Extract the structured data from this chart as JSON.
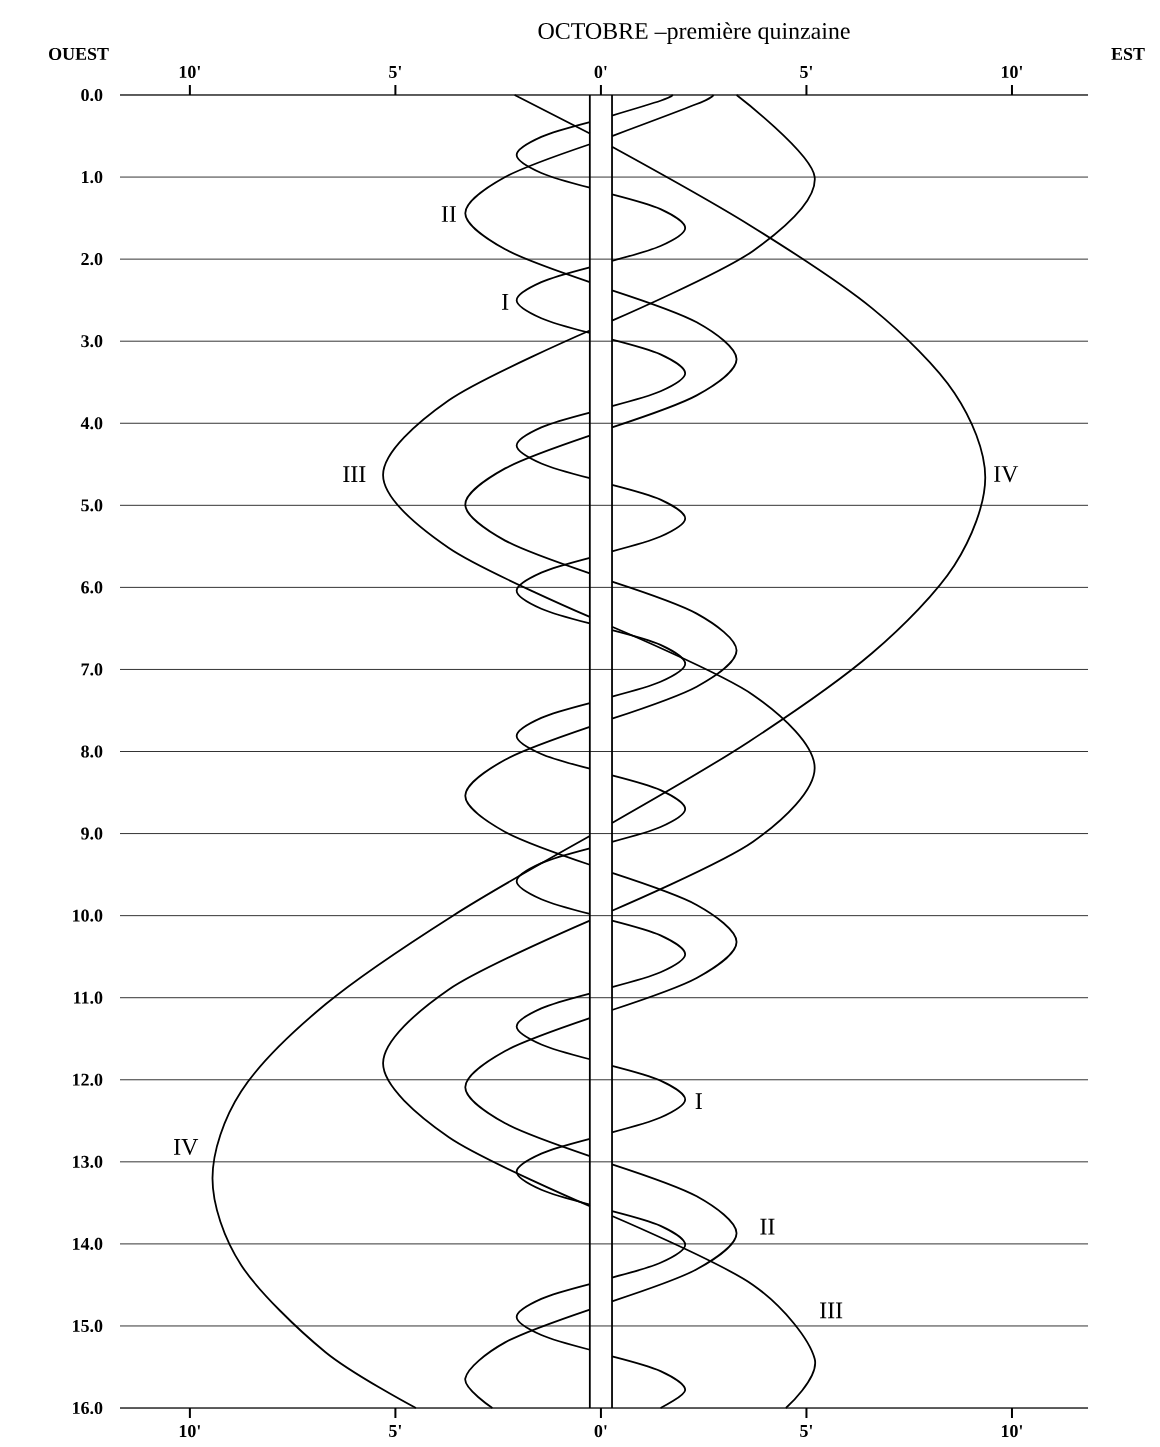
{
  "chart_data": {
    "type": "line",
    "title": "OCTOBRE –première quinzaine",
    "xlim": [
      -11.7,
      11.85
    ],
    "ylim": [
      16,
      0
    ],
    "xticks": [
      {
        "value": -10,
        "label": "10'"
      },
      {
        "value": -5,
        "label": "5'"
      },
      {
        "value": 0,
        "label": "0'"
      },
      {
        "value": 5,
        "label": "5'"
      },
      {
        "value": 10,
        "label": "10'"
      }
    ],
    "x2lim": [
      -11.7,
      11.85
    ],
    "x2ticks": [
      {
        "value": -10,
        "label": "10'"
      },
      {
        "value": -5,
        "label": "5'"
      },
      {
        "value": 0,
        "label": "0'"
      },
      {
        "value": 5,
        "label": "5'"
      },
      {
        "value": 10,
        "label": "10'"
      }
    ],
    "yticks": [
      {
        "value": 0,
        "label": "0.0"
      },
      {
        "value": 1,
        "label": "1.0"
      },
      {
        "value": 2,
        "label": "2.0"
      },
      {
        "value": 3,
        "label": "3.0"
      },
      {
        "value": 4,
        "label": "4.0"
      },
      {
        "value": 5,
        "label": "5.0"
      },
      {
        "value": 6,
        "label": "6.0"
      },
      {
        "value": 7,
        "label": "7.0"
      },
      {
        "value": 8,
        "label": "8.0"
      },
      {
        "value": 9,
        "label": "9.0"
      },
      {
        "value": 10,
        "label": "10.0"
      },
      {
        "value": 11,
        "label": "11.0"
      },
      {
        "value": 12,
        "label": "12.0"
      },
      {
        "value": 13,
        "label": "13.0"
      },
      {
        "value": 14,
        "label": "14.0"
      },
      {
        "value": 15,
        "label": "15.0"
      },
      {
        "value": 16,
        "label": "16.0"
      }
    ],
    "grid": "y",
    "marker": "none",
    "ref_lines": [
      {
        "axis": "x",
        "value": -0.27,
        "color": "#000000"
      },
      {
        "axis": "x",
        "value": 0.27,
        "color": "#000000"
      }
    ],
    "series": [
      {
        "color": "#000000",
        "x": [
          1.75,
          1.45,
          0.27,
          null,
          -0.27,
          -1.45,
          -2.05,
          -1.45,
          -0.27,
          null,
          0.27,
          1.45,
          2.05,
          1.45,
          0.27,
          null,
          -0.27,
          -1.45,
          -2.05,
          -1.45,
          -0.27,
          null,
          0.27,
          1.45,
          2.05,
          1.45,
          0.27,
          null,
          -0.27,
          -1.45,
          -2.05,
          -1.45,
          -0.27,
          null,
          0.27,
          1.45,
          2.05,
          1.45,
          0.27,
          null,
          -0.27,
          -1.45,
          -2.05,
          -1.45,
          -0.27,
          null,
          0.27,
          1.45,
          2.05,
          1.45,
          0.27,
          null,
          -0.27,
          -1.45,
          -2.05,
          -1.45,
          -0.27,
          null,
          0.27,
          1.45,
          2.05,
          1.45,
          0.27,
          null,
          -0.27,
          -1.45,
          -2.05,
          -1.45,
          -0.27,
          null,
          0.27,
          1.45,
          2.05,
          1.45,
          0.27,
          null,
          -0.27,
          -1.45,
          -2.05,
          -1.45,
          -0.27,
          null,
          0.27,
          1.45,
          2.05,
          1.45,
          0.27,
          null,
          -0.27,
          -1.45,
          -2.05,
          -1.45,
          -0.27,
          null,
          0.27,
          1.45,
          2.05,
          1.45,
          0.27,
          null,
          -0.27,
          -1.45,
          -2.05,
          -1.45,
          -0.27,
          null,
          0.27,
          1.45,
          2.05,
          1.45
        ],
        "values": [
          0,
          0.07,
          0.25,
          null,
          0.33,
          0.51,
          0.73,
          0.95,
          1.13,
          null,
          1.21,
          1.39,
          1.62,
          1.84,
          2.02,
          null,
          2.1,
          2.28,
          2.5,
          2.72,
          2.9,
          null,
          2.98,
          3.16,
          3.39,
          3.61,
          3.79,
          null,
          3.87,
          4.05,
          4.27,
          4.49,
          4.67,
          null,
          4.75,
          4.93,
          5.16,
          5.38,
          5.56,
          null,
          5.64,
          5.82,
          6.04,
          6.26,
          6.44,
          null,
          6.52,
          6.7,
          6.93,
          7.15,
          7.33,
          null,
          7.41,
          7.59,
          7.81,
          8.03,
          8.21,
          null,
          8.29,
          8.47,
          8.7,
          8.92,
          9.1,
          null,
          9.18,
          9.36,
          9.58,
          9.8,
          9.98,
          null,
          10.06,
          10.24,
          10.47,
          10.69,
          10.87,
          null,
          10.95,
          11.13,
          11.35,
          11.57,
          11.75,
          null,
          11.83,
          12.01,
          12.24,
          12.46,
          12.64,
          null,
          12.72,
          12.9,
          13.12,
          13.34,
          13.52,
          null,
          13.6,
          13.78,
          14.01,
          14.23,
          14.41,
          null,
          14.49,
          14.67,
          14.89,
          15.11,
          15.29,
          null,
          15.37,
          15.55,
          15.78,
          16
        ]
      },
      {
        "color": "#000000",
        "x": [
          2.74,
          2.33,
          0.27,
          null,
          -0.27,
          -2.33,
          -3.3,
          -2.33,
          -0.27,
          null,
          0.27,
          2.33,
          3.3,
          2.33,
          0.27,
          null,
          -0.27,
          -2.33,
          -3.3,
          -2.33,
          -0.27,
          null,
          0.27,
          2.33,
          3.3,
          2.33,
          0.27,
          null,
          -0.27,
          -2.33,
          -3.3,
          -2.33,
          -0.27,
          null,
          0.27,
          2.33,
          3.3,
          2.33,
          0.27,
          null,
          -0.27,
          -2.33,
          -3.3,
          -2.33,
          -0.27,
          null,
          0.27,
          2.33,
          3.3,
          2.33,
          0.27,
          null,
          -0.27,
          -2.33,
          -3.3,
          -2.64
        ],
        "values": [
          0,
          0.11,
          0.5,
          null,
          0.6,
          1.0,
          1.44,
          1.88,
          2.28,
          null,
          2.38,
          2.77,
          3.22,
          3.66,
          4.05,
          null,
          4.15,
          4.55,
          4.99,
          5.43,
          5.83,
          null,
          5.93,
          6.32,
          6.77,
          7.21,
          7.6,
          null,
          7.7,
          8.1,
          8.54,
          8.98,
          9.38,
          null,
          9.48,
          9.87,
          10.32,
          10.76,
          11.15,
          null,
          11.25,
          11.65,
          12.09,
          12.53,
          12.93,
          null,
          13.03,
          13.42,
          13.87,
          14.31,
          14.7,
          null,
          14.8,
          15.2,
          15.64,
          16
        ]
      },
      {
        "color": "#000000",
        "x": [
          3.3,
          5.2,
          3.7,
          0.27,
          null,
          -0.27,
          -3.7,
          -5.3,
          -3.7,
          -0.27,
          null,
          0.27,
          3.7,
          5.2,
          3.7,
          0.27,
          null,
          -0.27,
          -3.7,
          -5.3,
          -3.7,
          -0.27,
          null,
          0.27,
          3.7,
          5.2,
          4.5
        ],
        "values": [
          0,
          1.0,
          1.9,
          2.75,
          null,
          2.87,
          3.72,
          4.63,
          5.52,
          6.36,
          null,
          6.48,
          7.31,
          8.2,
          9.1,
          9.94,
          null,
          10.06,
          10.9,
          11.8,
          12.7,
          13.54,
          null,
          13.66,
          14.5,
          15.4,
          16
        ]
      },
      {
        "color": "#000000",
        "x": [
          -2.1,
          -0.27,
          null,
          0.27,
          3.6,
          6.6,
          8.6,
          9.35,
          8.6,
          6.6,
          3.6,
          0.27,
          null,
          -0.27,
          -3.6,
          -6.7,
          -8.75,
          -9.45,
          -8.75,
          -6.7,
          -4.5
        ],
        "values": [
          0,
          0.47,
          null,
          0.63,
          1.58,
          2.6,
          3.63,
          4.66,
          5.73,
          6.8,
          7.88,
          8.87,
          null,
          9.03,
          10.0,
          11.08,
          12.14,
          13.2,
          14.26,
          15.32,
          16
        ]
      }
    ],
    "annotations": [
      "OUEST",
      "EST",
      {
        "text": "II",
        "x": -3.7,
        "y": 1.45
      },
      {
        "text": "I",
        "x": -2.33,
        "y": 2.52
      },
      {
        "text": "III",
        "x": -6.0,
        "y": 4.62
      },
      {
        "text": "IV",
        "x": 9.85,
        "y": 4.62
      },
      {
        "text": "I",
        "x": 2.38,
        "y": 12.26
      },
      {
        "text": "IV",
        "x": -10.1,
        "y": 12.82
      },
      {
        "text": "II",
        "x": 4.05,
        "y": 13.79
      },
      {
        "text": "III",
        "x": 5.6,
        "y": 14.81
      }
    ]
  }
}
